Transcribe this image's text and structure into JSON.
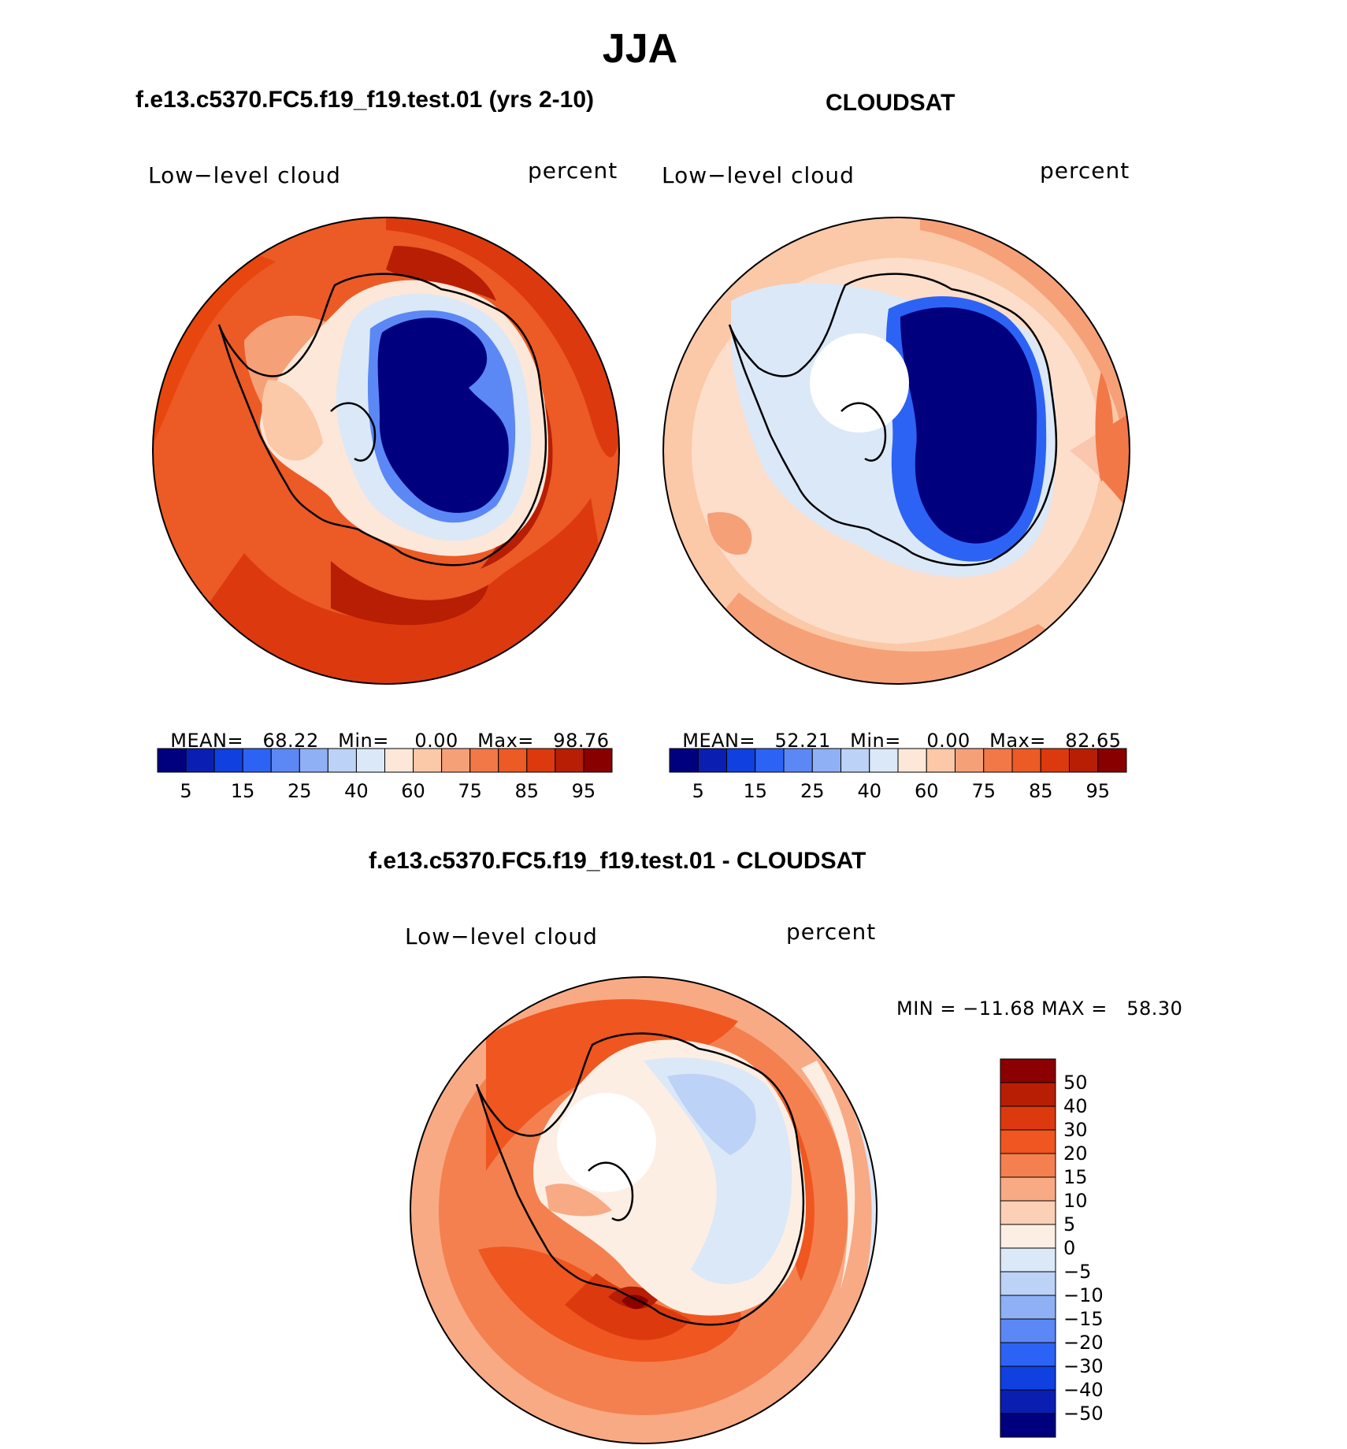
{
  "figure": {
    "season": "JJA"
  },
  "panels": {
    "model": {
      "title": "f.e13.c5370.FC5.f19_f19.test.01 (yrs 2-10)",
      "variable_label": "Low−level cloud",
      "units_label": "percent",
      "stats": {
        "mean_label": "MEAN=",
        "mean_value": "68.22",
        "min_label": "Min=",
        "min_value": "0.00",
        "max_label": "Max=",
        "max_value": "98.76"
      },
      "colorbar_ticks": [
        "5",
        "15",
        "25",
        "40",
        "60",
        "75",
        "85",
        "95"
      ]
    },
    "obs": {
      "title": "CLOUDSAT",
      "variable_label": "Low−level cloud",
      "units_label": "percent",
      "stats": {
        "mean_label": "MEAN=",
        "mean_value": "52.21",
        "min_label": "Min=",
        "min_value": "0.00",
        "max_label": "Max=",
        "max_value": "82.65"
      },
      "colorbar_ticks": [
        "5",
        "15",
        "25",
        "40",
        "60",
        "75",
        "85",
        "95"
      ]
    },
    "diff": {
      "title": "f.e13.c5370.FC5.f19_f19.test.01 - CLOUDSAT",
      "variable_label": "Low−level cloud",
      "units_label": "percent",
      "minmax_text": "MIN = −11.68 MAX =   58.30",
      "colorbar_ticks": [
        "50",
        "40",
        "30",
        "20",
        "15",
        "10",
        "5",
        "0",
        "−5",
        "−10",
        "−15",
        "−20",
        "−30",
        "−40",
        "−50"
      ]
    }
  },
  "colors": {
    "abs_scale": [
      "#00007f",
      "#0a1fb2",
      "#1140e0",
      "#2d63f5",
      "#5c88f5",
      "#90b0f5",
      "#bcd2f6",
      "#dbe8f8",
      "#fde7d8",
      "#fbc8a8",
      "#f6a078",
      "#f27848",
      "#ec5a26",
      "#dc3a0e",
      "#b81e04",
      "#880000"
    ],
    "diff_scale": [
      "#8b0000",
      "#b81e04",
      "#dc3a0e",
      "#ef5620",
      "#f4804f",
      "#f8aa84",
      "#fbd0b6",
      "#fdeee4",
      "#dbe8f8",
      "#bcd2f6",
      "#90b0f5",
      "#5c88f5",
      "#2d63f5",
      "#1140e0",
      "#0a1fb2",
      "#00007f"
    ],
    "coastline": "#000000"
  }
}
